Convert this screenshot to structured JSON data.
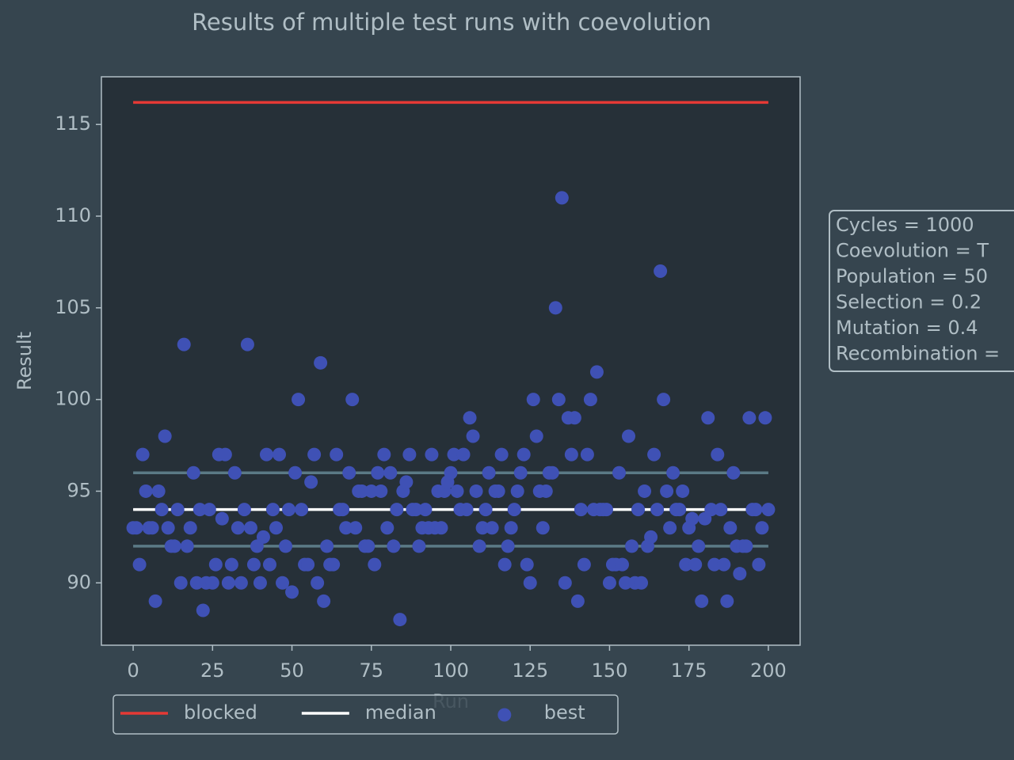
{
  "chart_data": {
    "type": "scatter",
    "title": "Results of multiple test runs with coevolution",
    "xlabel": "Run",
    "ylabel": "Result",
    "xlim": [
      -10,
      210
    ],
    "ylim": [
      86.6,
      117.6
    ],
    "xticks": [
      0,
      25,
      50,
      75,
      100,
      125,
      150,
      175,
      200
    ],
    "yticks": [
      90,
      95,
      100,
      105,
      110,
      115
    ],
    "lines": [
      {
        "name": "blocked",
        "color": "#e53935",
        "x": [
          0,
          200
        ],
        "values": [
          116.2,
          116.2
        ]
      },
      {
        "color": "#5b7a86",
        "x": [
          0,
          200
        ],
        "values": [
          96,
          96
        ]
      },
      {
        "color": "#5b7a86",
        "x": [
          0,
          200
        ],
        "values": [
          92,
          92
        ]
      },
      {
        "name": "median",
        "color": "#ffffff",
        "x": [
          0,
          200
        ],
        "values": [
          94,
          94
        ]
      }
    ],
    "series": [
      {
        "name": "best",
        "color": "#3f51b5",
        "x": [
          0,
          1,
          2,
          3,
          4,
          5,
          6,
          7,
          8,
          9,
          10,
          11,
          12,
          13,
          14,
          15,
          16,
          17,
          18,
          19,
          20,
          21,
          22,
          23,
          24,
          25,
          26,
          27,
          28,
          29,
          30,
          31,
          32,
          33,
          34,
          35,
          36,
          37,
          38,
          39,
          40,
          41,
          42,
          43,
          44,
          45,
          46,
          47,
          48,
          49,
          50,
          51,
          52,
          53,
          54,
          55,
          56,
          57,
          58,
          59,
          60,
          61,
          62,
          63,
          64,
          65,
          66,
          67,
          68,
          69,
          70,
          71,
          72,
          73,
          74,
          75,
          76,
          77,
          78,
          79,
          80,
          81,
          82,
          83,
          84,
          85,
          86,
          87,
          88,
          89,
          90,
          91,
          92,
          93,
          94,
          95,
          96,
          97,
          98,
          99,
          100,
          101,
          102,
          103,
          104,
          105,
          106,
          107,
          108,
          109,
          110,
          111,
          112,
          113,
          114,
          115,
          116,
          117,
          118,
          119,
          120,
          121,
          122,
          123,
          124,
          125,
          126,
          127,
          128,
          129,
          130,
          131,
          132,
          133,
          134,
          135,
          136,
          137,
          138,
          139,
          140,
          141,
          142,
          143,
          144,
          145,
          146,
          147,
          148,
          149,
          150,
          151,
          152,
          153,
          154,
          155,
          156,
          157,
          158,
          159,
          160,
          161,
          162,
          163,
          164,
          165,
          166,
          167,
          168,
          169,
          170,
          171,
          172,
          173,
          174,
          175,
          176,
          177,
          178,
          179,
          180,
          181,
          182,
          183,
          184,
          185,
          186,
          187,
          188,
          189,
          190,
          191,
          192,
          193,
          194,
          195,
          196,
          197,
          198,
          199,
          200
        ],
        "values": [
          93,
          93,
          91,
          97,
          95,
          93,
          93,
          89,
          95,
          94,
          98,
          93,
          92,
          92,
          94,
          90,
          103,
          92,
          93,
          96,
          90,
          94,
          88.5,
          90,
          94,
          90,
          91,
          97,
          93.5,
          97,
          90,
          91,
          96,
          93,
          90,
          94,
          103,
          93,
          91,
          92,
          90,
          92.5,
          97,
          91,
          94,
          93,
          97,
          90,
          92,
          94,
          89.5,
          96,
          100,
          94,
          91,
          91,
          95.5,
          97,
          90,
          102,
          89,
          92,
          91,
          91,
          97,
          94,
          94,
          93,
          96,
          100,
          93,
          95,
          95,
          92,
          92,
          95,
          91,
          96,
          95,
          97,
          93,
          96,
          92,
          94,
          88,
          95,
          95.5,
          97,
          94,
          94,
          92,
          93,
          94,
          93,
          97,
          93,
          95,
          93,
          95,
          95.5,
          96,
          97,
          95,
          94,
          97,
          94,
          99,
          98,
          95,
          92,
          93,
          94,
          96,
          93,
          95,
          95,
          97,
          91,
          92,
          93,
          94,
          95,
          96,
          97,
          91,
          90,
          100,
          98,
          95,
          93,
          95,
          96,
          96,
          105,
          100,
          111,
          90,
          99,
          97,
          99,
          89,
          94,
          91,
          97,
          100,
          94,
          101.5,
          94,
          94,
          94,
          90,
          91,
          91,
          96,
          91,
          90,
          98,
          92,
          90,
          94,
          90,
          95,
          92,
          92.5,
          97,
          94,
          107,
          100,
          95,
          93,
          96,
          94,
          94,
          95,
          91,
          93,
          93.5,
          91,
          92,
          89,
          93.5,
          99,
          94,
          91,
          97,
          94,
          91,
          89,
          93,
          96,
          92,
          90.5,
          92,
          92,
          99,
          94,
          94,
          91,
          93,
          99,
          94
        ]
      }
    ],
    "info_box": [
      "Cycles = 1000",
      "Coevolution = T",
      "Population = 50",
      "Selection = 0.2",
      "Mutation = 0.4",
      "Recombination ="
    ]
  }
}
